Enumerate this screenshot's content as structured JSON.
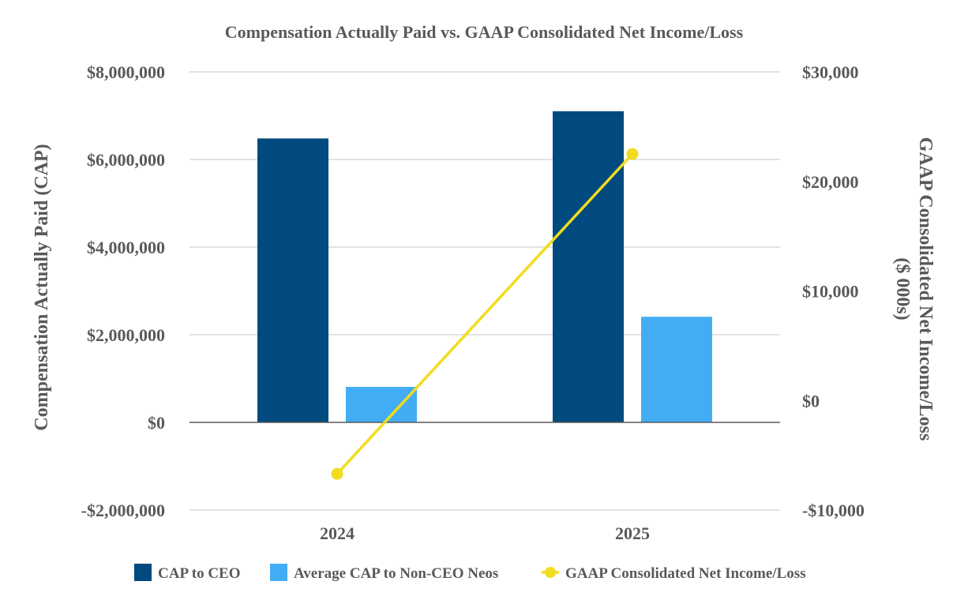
{
  "chart_data": {
    "type": "bar",
    "title": "Compensation Actually Paid vs. GAAP Consolidated Net Income/Loss",
    "categories": [
      "2024",
      "2025"
    ],
    "y_left": {
      "label": "Compensation Actually Paid (CAP)",
      "lim": [
        -2000000,
        8000000
      ],
      "ticks": [
        -2000000,
        0,
        2000000,
        4000000,
        6000000,
        8000000
      ],
      "tick_labels": [
        "-$2,000,000",
        "$0",
        "$2,000,000",
        "$4,000,000",
        "$6,000,000",
        "$8,000,000"
      ]
    },
    "y_right": {
      "label": "GAAP Consolidated Net Income/Loss",
      "label_line2": "($ 000s)",
      "lim": [
        -10000,
        30000
      ],
      "ticks": [
        -10000,
        0,
        10000,
        20000,
        30000
      ],
      "tick_labels": [
        "-$10,000",
        "$0",
        "$10,000",
        "$20,000",
        "$30,000"
      ]
    },
    "series": [
      {
        "name": "CAP to CEO",
        "type": "bar",
        "axis": "left",
        "color": "#004a7f",
        "values": [
          6480000,
          7100000
        ]
      },
      {
        "name": "Average CAP to Non-CEO Neos",
        "type": "bar",
        "axis": "left",
        "color": "#42adf5",
        "values": [
          810000,
          2410000
        ]
      },
      {
        "name": "GAAP Consolidated Net Income/Loss",
        "type": "line",
        "axis": "right",
        "color": "#f2dc1f",
        "values": [
          -6700,
          22500
        ]
      }
    ],
    "grid": true,
    "legend_position": "bottom"
  }
}
